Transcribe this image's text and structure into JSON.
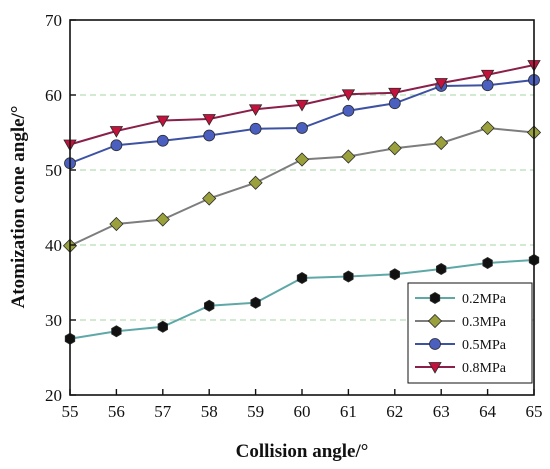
{
  "chart_data": {
    "type": "line",
    "title": "",
    "xlabel": "Collision angle/°",
    "ylabel": "Atomization cone angle/°",
    "xlim": [
      55,
      65
    ],
    "ylim": [
      20,
      70
    ],
    "x": [
      55,
      56,
      57,
      58,
      59,
      60,
      61,
      62,
      63,
      64,
      65
    ],
    "xticks": [
      "55",
      "56",
      "57",
      "58",
      "59",
      "60",
      "61",
      "62",
      "63",
      "64",
      "65"
    ],
    "yticks": [
      "20",
      "30",
      "40",
      "50",
      "60",
      "70"
    ],
    "grid": true,
    "legend_position": "bottom-right",
    "series": [
      {
        "name": "0.2MPa",
        "marker": "hexagon",
        "line_color": "#5fa8a8",
        "marker_color": "#111111",
        "values": [
          27.5,
          28.5,
          29.1,
          31.9,
          32.3,
          35.6,
          35.8,
          36.1,
          36.8,
          37.6,
          38.0
        ]
      },
      {
        "name": "0.3MPa",
        "marker": "diamond",
        "line_color": "#7d7d7d",
        "marker_color": "#9aa13c",
        "values": [
          39.9,
          42.8,
          43.4,
          46.2,
          48.3,
          51.4,
          51.8,
          52.9,
          53.6,
          55.6,
          55.0
        ]
      },
      {
        "name": "0.5MPa",
        "marker": "circle",
        "line_color": "#3e52a3",
        "marker_color": "#4b5fc0",
        "values": [
          50.9,
          53.3,
          53.9,
          54.6,
          55.5,
          55.6,
          57.9,
          58.9,
          61.2,
          61.3,
          62.0
        ]
      },
      {
        "name": "0.8MPa",
        "marker": "triangle-down",
        "line_color": "#8a1f4a",
        "marker_color": "#c4123c",
        "values": [
          53.4,
          55.2,
          56.6,
          56.8,
          58.1,
          58.7,
          60.1,
          60.3,
          61.6,
          62.7,
          64.0
        ]
      }
    ]
  }
}
